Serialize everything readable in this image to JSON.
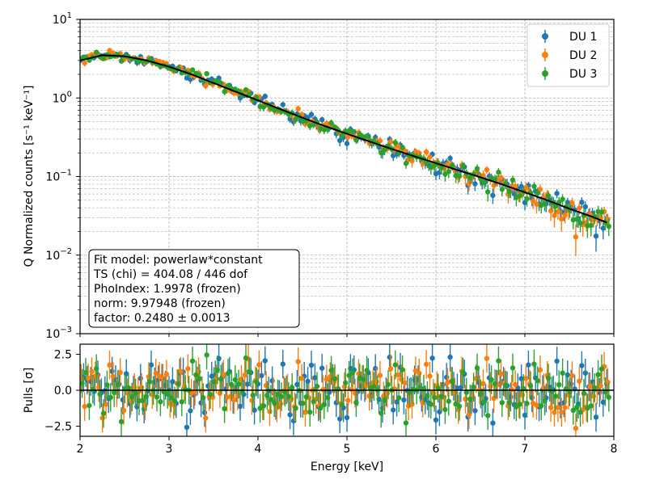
{
  "chart_data": [
    {
      "type": "scatter",
      "panel": "main",
      "xlim": [
        2,
        8
      ],
      "ylim": [
        0.001,
        10
      ],
      "yscale": "log",
      "ylabel": "Q Normalized counts [s⁻¹ keV⁻¹]",
      "xticks": [
        "2",
        "3",
        "4",
        "5",
        "6",
        "7",
        "8"
      ],
      "yticks": [
        {
          "value": 0.001,
          "base": "10",
          "exp": "−3"
        },
        {
          "value": 0.01,
          "base": "10",
          "exp": "−2"
        },
        {
          "value": 0.1,
          "base": "10",
          "exp": "−1"
        },
        {
          "value": 1,
          "base": "10",
          "exp": "0"
        },
        {
          "value": 10,
          "base": "10",
          "exp": "1"
        }
      ],
      "grid": true,
      "legend_position": "top-right",
      "series": [
        {
          "name": "DU 1",
          "color": "#1f77b4"
        },
        {
          "name": "DU 2",
          "color": "#ff7f0e"
        },
        {
          "name": "DU 3",
          "color": "#2ca02c"
        }
      ],
      "model": {
        "color": "#000000",
        "points": [
          [
            2.0,
            3.0
          ],
          [
            2.25,
            3.5
          ],
          [
            2.5,
            3.4
          ],
          [
            2.75,
            3.0
          ],
          [
            3.0,
            2.5
          ],
          [
            3.25,
            2.0
          ],
          [
            3.5,
            1.55
          ],
          [
            3.75,
            1.2
          ],
          [
            4.0,
            0.93
          ],
          [
            4.25,
            0.72
          ],
          [
            4.5,
            0.56
          ],
          [
            4.75,
            0.44
          ],
          [
            5.0,
            0.35
          ],
          [
            5.25,
            0.28
          ],
          [
            5.5,
            0.225
          ],
          [
            5.75,
            0.182
          ],
          [
            6.0,
            0.148
          ],
          [
            6.25,
            0.12
          ],
          [
            6.5,
            0.098
          ],
          [
            6.75,
            0.079
          ],
          [
            7.0,
            0.063
          ],
          [
            7.25,
            0.05
          ],
          [
            7.5,
            0.039
          ],
          [
            7.75,
            0.031
          ],
          [
            7.92,
            0.026
          ]
        ]
      },
      "annotation": [
        "Fit model: powerlaw*constant",
        "TS (chi) = 404.08 / 446 dof",
        "PhoIndex: 1.9978 (frozen)",
        "norm: 9.97948 (frozen)",
        "factor: 0.2480 ± 0.0013"
      ]
    },
    {
      "type": "scatter",
      "panel": "residuals",
      "xlim": [
        2,
        8
      ],
      "ylim": [
        -3.2,
        3.2
      ],
      "xlabel": "Energy [keV]",
      "ylabel": "Pulls [σ]",
      "xticks": [
        "2",
        "3",
        "4",
        "5",
        "6",
        "7",
        "8"
      ],
      "yticks": [
        {
          "value": 2.5,
          "label": "2.5"
        },
        {
          "value": 0,
          "label": "0.0"
        },
        {
          "value": -2.5,
          "label": "−2.5"
        }
      ],
      "zero_line": 0,
      "series": [
        {
          "name": "DU 1",
          "color": "#1f77b4"
        },
        {
          "name": "DU 2",
          "color": "#ff7f0e"
        },
        {
          "name": "DU 3",
          "color": "#2ca02c"
        }
      ]
    }
  ]
}
